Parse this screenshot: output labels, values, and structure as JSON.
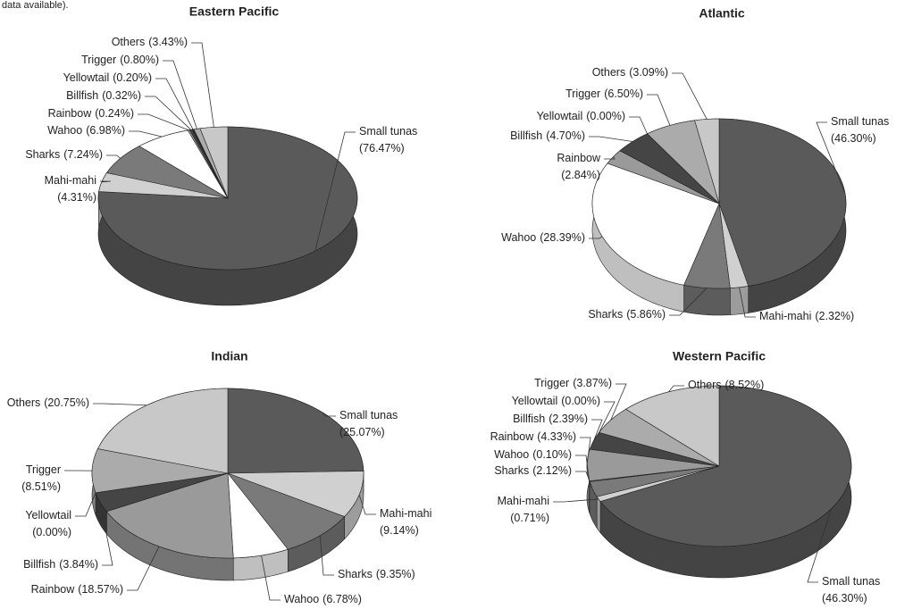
{
  "note": "data available).",
  "chart_data": [
    {
      "type": "pie",
      "title": "Eastern Pacific",
      "categories": [
        "Small tunas",
        "Mahi-mahi",
        "Sharks",
        "Wahoo",
        "Rainbow",
        "Billfish",
        "Yellowtail",
        "Trigger",
        "Others"
      ],
      "values": [
        76.47,
        4.31,
        7.24,
        6.98,
        0.24,
        0.32,
        0.2,
        0.8,
        3.43
      ],
      "value_labels": [
        "(76.47%)",
        "(4.31%)",
        "(7.24%)",
        "(6.98%)",
        "(0.24%)",
        "(0.32%)",
        "(0.20%)",
        "(0.80%)",
        "(3.43%)"
      ],
      "colors": [
        "#5a5a5a",
        "#d0d0d0",
        "#7a7a7a",
        "#ffffff",
        "#9a9a9a",
        "#454545",
        "#262626",
        "#ababab",
        "#c8c8c8"
      ]
    },
    {
      "type": "pie",
      "title": "Atlantic",
      "categories": [
        "Small tunas",
        "Mahi-mahi",
        "Sharks",
        "Wahoo",
        "Rainbow",
        "Billfish",
        "Yellowtail",
        "Trigger",
        "Others"
      ],
      "values": [
        46.3,
        2.32,
        5.86,
        28.39,
        2.84,
        4.7,
        0.0,
        6.5,
        3.09
      ],
      "value_labels": [
        "(46.30%)",
        "(2.32%)",
        "(5.86%)",
        "(28.39%)",
        "(2.84%)",
        "(4.70%)",
        "(0.00%)",
        "(6.50%)",
        "(3.09%)"
      ],
      "colors": [
        "#5a5a5a",
        "#d0d0d0",
        "#7a7a7a",
        "#ffffff",
        "#9a9a9a",
        "#454545",
        "#262626",
        "#ababab",
        "#c8c8c8"
      ]
    },
    {
      "type": "pie",
      "title": "Indian",
      "categories": [
        "Small tunas",
        "Mahi-mahi",
        "Sharks",
        "Wahoo",
        "Rainbow",
        "Billfish",
        "Yellowtail",
        "Trigger",
        "Others"
      ],
      "values": [
        25.07,
        9.14,
        9.35,
        6.78,
        18.57,
        3.84,
        0.0,
        8.51,
        20.75
      ],
      "value_labels": [
        "(25.07%)",
        "(9.14%)",
        "(9.35%)",
        "(6.78%)",
        "(18.57%)",
        "(3.84%)",
        "(0.00%)",
        "(8.51%)",
        "(20.75%)"
      ],
      "colors": [
        "#5a5a5a",
        "#d0d0d0",
        "#7a7a7a",
        "#ffffff",
        "#9a9a9a",
        "#454545",
        "#262626",
        "#ababab",
        "#c8c8c8"
      ]
    },
    {
      "type": "pie",
      "title": "Western Pacific",
      "categories": [
        "Small tunas",
        "Mahi-mahi",
        "Sharks",
        "Wahoo",
        "Rainbow",
        "Billfish",
        "Yellowtail",
        "Trigger",
        "Others"
      ],
      "values": [
        46.3,
        0.71,
        2.12,
        0.1,
        4.33,
        2.39,
        0.0,
        3.87,
        8.52
      ],
      "value_labels": [
        "(46.30%)",
        "(0.71%)",
        "(2.12%)",
        "(0.10%)",
        "(4.33%)",
        "(2.39%)",
        "(0.00%)",
        "(3.87%)",
        "(8.52%)"
      ],
      "colors": [
        "#5a5a5a",
        "#d0d0d0",
        "#7a7a7a",
        "#ffffff",
        "#9a9a9a",
        "#454545",
        "#262626",
        "#ababab",
        "#c8c8c8"
      ]
    }
  ]
}
